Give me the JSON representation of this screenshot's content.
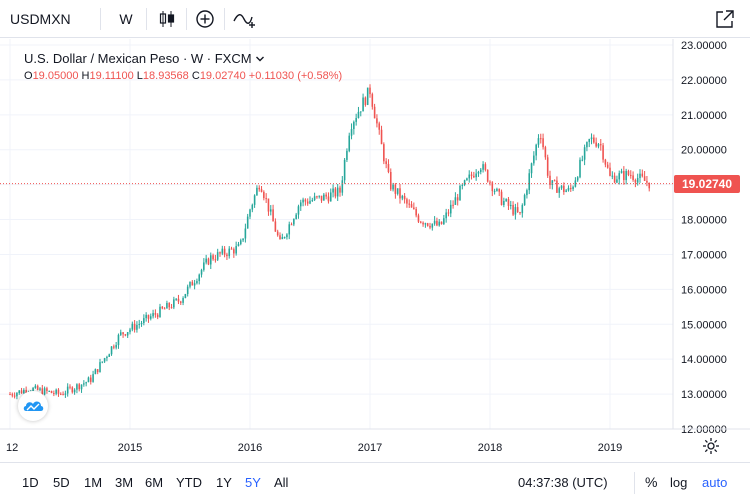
{
  "topbar": {
    "symbol": "USDMXN",
    "interval": "W",
    "icons": [
      "candles-icon",
      "plus-circle-icon",
      "indicators-icon",
      "fullscreen-icon"
    ]
  },
  "legend": {
    "title": "U.S. Dollar / Mexican Peso · W · FXCM",
    "o_label": "O",
    "o_value": "19.05000",
    "h_label": "H",
    "h_value": "19.11100",
    "l_label": "L",
    "l_value": "18.93568",
    "c_label": "C",
    "c_value": "19.02740",
    "change": "+0.11030 (+0.58%)"
  },
  "price_tag": "19.02740",
  "colors": {
    "up": "#26a69a",
    "down": "#ef5350",
    "grid": "#f0f3fa",
    "axis_text": "#131722"
  },
  "chart_data": {
    "type": "candlestick",
    "interval": "W",
    "y_axis_labels": [
      "23.00000",
      "22.00000",
      "21.00000",
      "20.00000",
      "19.00000",
      "18.00000",
      "17.00000",
      "16.00000",
      "15.00000",
      "14.00000",
      "13.00000",
      "12.00000"
    ],
    "ylim": [
      12,
      23
    ],
    "x_axis_labels": [
      "12",
      "2015",
      "2016",
      "2017",
      "2018",
      "2019"
    ],
    "x_label_dates": [
      "2014-01",
      "2015-01",
      "2016-01",
      "2017-01",
      "2018-01",
      "2019-01"
    ],
    "xlim_dates": [
      "2014-01",
      "2019-06"
    ],
    "last_close": 19.0274,
    "approx_close_path": [
      [
        "2014-01",
        13.0
      ],
      [
        "2014-03",
        13.15
      ],
      [
        "2014-06",
        13.0
      ],
      [
        "2014-09",
        13.4
      ],
      [
        "2014-12",
        14.7
      ],
      [
        "2015-03",
        15.2
      ],
      [
        "2015-06",
        15.7
      ],
      [
        "2015-09",
        16.9
      ],
      [
        "2015-12",
        17.2
      ],
      [
        "2016-01",
        18.3
      ],
      [
        "2016-02",
        19.1
      ],
      [
        "2016-04",
        17.3
      ],
      [
        "2016-06",
        18.5
      ],
      [
        "2016-08",
        18.6
      ],
      [
        "2016-10",
        18.8
      ],
      [
        "2016-11",
        20.7
      ],
      [
        "2017-01",
        21.7
      ],
      [
        "2017-02",
        20.3
      ],
      [
        "2017-03",
        19.0
      ],
      [
        "2017-06",
        18.0
      ],
      [
        "2017-08",
        17.8
      ],
      [
        "2017-10",
        18.8
      ],
      [
        "2017-12",
        19.6
      ],
      [
        "2018-02",
        18.6
      ],
      [
        "2018-04",
        18.1
      ],
      [
        "2018-06",
        20.6
      ],
      [
        "2018-07",
        19.0
      ],
      [
        "2018-09",
        18.8
      ],
      [
        "2018-11",
        20.3
      ],
      [
        "2018-12",
        20.2
      ],
      [
        "2019-01",
        19.2
      ],
      [
        "2019-03",
        19.3
      ],
      [
        "2019-05",
        19.03
      ]
    ]
  },
  "bottombar": {
    "ranges": [
      "1D",
      "5D",
      "1M",
      "3M",
      "6M",
      "YTD",
      "1Y",
      "5Y",
      "All"
    ],
    "active_range": "5Y",
    "clock": "04:37:38 (UTC)",
    "percent": "%",
    "log": "log",
    "auto": "auto"
  }
}
